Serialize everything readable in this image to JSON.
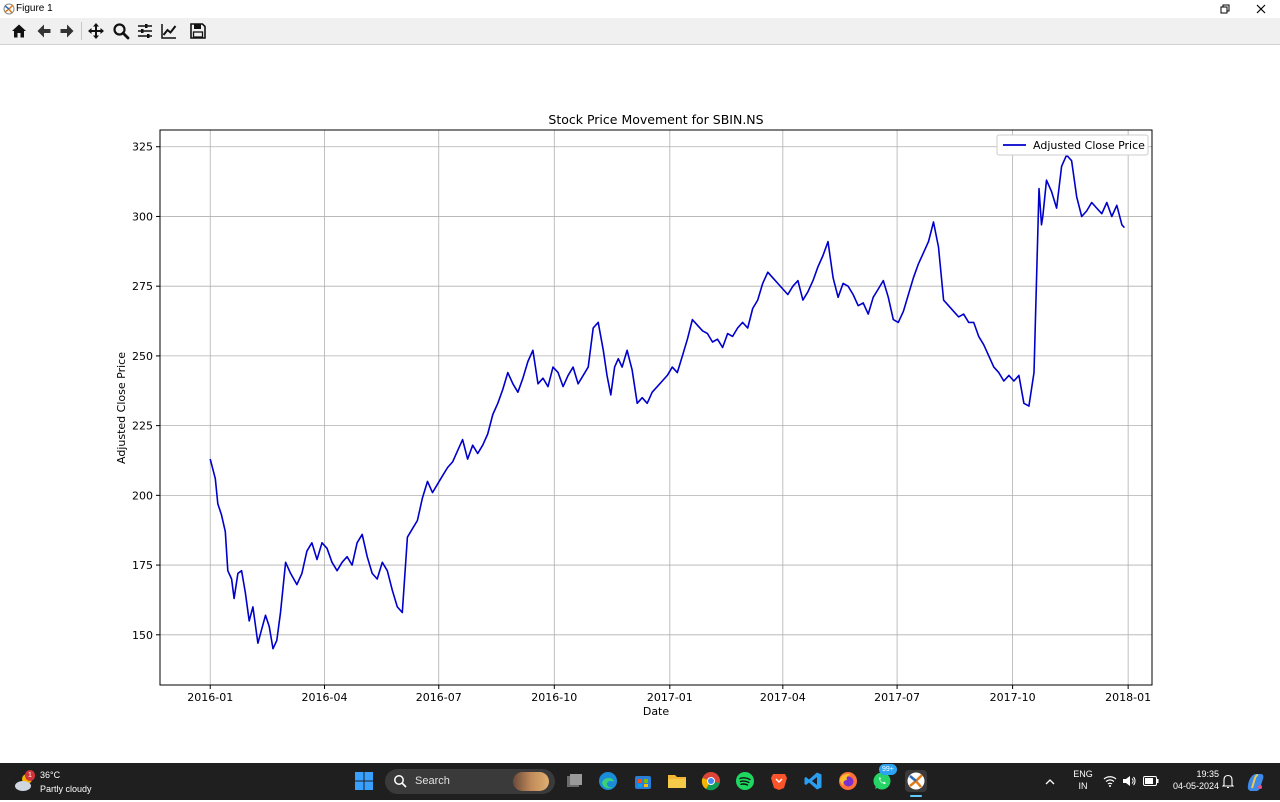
{
  "window": {
    "title": "Figure 1",
    "restore_icon": "restore-icon",
    "close_icon": "close-icon"
  },
  "toolbar": {
    "buttons": [
      {
        "name": "home",
        "icon": "home-icon"
      },
      {
        "name": "back",
        "icon": "arrow-left-icon"
      },
      {
        "name": "forward",
        "icon": "arrow-right-icon"
      },
      {
        "name": "pan",
        "icon": "move-icon"
      },
      {
        "name": "zoom",
        "icon": "magnifier-icon"
      },
      {
        "name": "configure-subplots",
        "icon": "sliders-icon"
      },
      {
        "name": "edit-axis",
        "icon": "line-chart-icon"
      },
      {
        "name": "save",
        "icon": "floppy-disk-icon"
      }
    ]
  },
  "chart_data": {
    "type": "line",
    "title": "Stock Price Movement for SBIN.NS",
    "xlabel": "Date",
    "ylabel": "Adjusted Close Price",
    "xlim": [
      "2015-11-22",
      "2018-01-20"
    ],
    "ylim": [
      132,
      331
    ],
    "xticks": [
      "2016-01",
      "2016-04",
      "2016-07",
      "2016-10",
      "2017-01",
      "2017-04",
      "2017-07",
      "2017-10",
      "2018-01"
    ],
    "yticks": [
      150,
      175,
      200,
      225,
      250,
      275,
      300,
      325
    ],
    "grid": true,
    "legend_position": "upper right",
    "series": [
      {
        "name": "Adjusted Close Price",
        "color": "#0000cc",
        "x": [
          "2016-01-01",
          "2016-01-05",
          "2016-01-07",
          "2016-01-10",
          "2016-01-13",
          "2016-01-15",
          "2016-01-18",
          "2016-01-20",
          "2016-01-23",
          "2016-01-26",
          "2016-01-29",
          "2016-02-01",
          "2016-02-04",
          "2016-02-08",
          "2016-02-11",
          "2016-02-14",
          "2016-02-17",
          "2016-02-20",
          "2016-02-23",
          "2016-02-26",
          "2016-03-01",
          "2016-03-05",
          "2016-03-10",
          "2016-03-14",
          "2016-03-18",
          "2016-03-22",
          "2016-03-26",
          "2016-03-30",
          "2016-04-03",
          "2016-04-07",
          "2016-04-11",
          "2016-04-15",
          "2016-04-19",
          "2016-04-23",
          "2016-04-27",
          "2016-05-01",
          "2016-05-05",
          "2016-05-09",
          "2016-05-13",
          "2016-05-17",
          "2016-05-21",
          "2016-05-25",
          "2016-05-29",
          "2016-06-02",
          "2016-06-06",
          "2016-06-10",
          "2016-06-14",
          "2016-06-18",
          "2016-06-22",
          "2016-06-26",
          "2016-06-30",
          "2016-07-04",
          "2016-07-08",
          "2016-07-12",
          "2016-07-16",
          "2016-07-20",
          "2016-07-24",
          "2016-07-28",
          "2016-08-01",
          "2016-08-05",
          "2016-08-09",
          "2016-08-13",
          "2016-08-17",
          "2016-08-21",
          "2016-08-25",
          "2016-08-29",
          "2016-09-02",
          "2016-09-06",
          "2016-09-10",
          "2016-09-14",
          "2016-09-18",
          "2016-09-22",
          "2016-09-26",
          "2016-09-30",
          "2016-10-04",
          "2016-10-08",
          "2016-10-12",
          "2016-10-16",
          "2016-10-20",
          "2016-10-24",
          "2016-10-28",
          "2016-11-01",
          "2016-11-05",
          "2016-11-09",
          "2016-11-12",
          "2016-11-15",
          "2016-11-18",
          "2016-11-21",
          "2016-11-24",
          "2016-11-28",
          "2016-12-02",
          "2016-12-06",
          "2016-12-10",
          "2016-12-14",
          "2016-12-18",
          "2016-12-22",
          "2016-12-26",
          "2016-12-30",
          "2017-01-03",
          "2017-01-07",
          "2017-01-11",
          "2017-01-15",
          "2017-01-19",
          "2017-01-23",
          "2017-01-27",
          "2017-01-31",
          "2017-02-04",
          "2017-02-08",
          "2017-02-12",
          "2017-02-16",
          "2017-02-20",
          "2017-02-24",
          "2017-02-28",
          "2017-03-04",
          "2017-03-08",
          "2017-03-12",
          "2017-03-16",
          "2017-03-20",
          "2017-03-24",
          "2017-03-28",
          "2017-04-01",
          "2017-04-05",
          "2017-04-09",
          "2017-04-13",
          "2017-04-17",
          "2017-04-21",
          "2017-04-25",
          "2017-04-29",
          "2017-05-03",
          "2017-05-07",
          "2017-05-11",
          "2017-05-15",
          "2017-05-19",
          "2017-05-23",
          "2017-05-27",
          "2017-05-31",
          "2017-06-04",
          "2017-06-08",
          "2017-06-12",
          "2017-06-16",
          "2017-06-20",
          "2017-06-24",
          "2017-06-28",
          "2017-07-02",
          "2017-07-06",
          "2017-07-10",
          "2017-07-14",
          "2017-07-18",
          "2017-07-22",
          "2017-07-26",
          "2017-07-30",
          "2017-08-03",
          "2017-08-07",
          "2017-08-11",
          "2017-08-15",
          "2017-08-19",
          "2017-08-23",
          "2017-08-27",
          "2017-08-31",
          "2017-09-04",
          "2017-09-08",
          "2017-09-12",
          "2017-09-16",
          "2017-09-20",
          "2017-09-24",
          "2017-09-28",
          "2017-10-02",
          "2017-10-06",
          "2017-10-10",
          "2017-10-14",
          "2017-10-18",
          "2017-10-22",
          "2017-10-24",
          "2017-10-25",
          "2017-10-28",
          "2017-11-01",
          "2017-11-05",
          "2017-11-09",
          "2017-11-13",
          "2017-11-17",
          "2017-11-21",
          "2017-11-25",
          "2017-11-29",
          "2017-12-03",
          "2017-12-07",
          "2017-12-11",
          "2017-12-15",
          "2017-12-19",
          "2017-12-23",
          "2017-12-27",
          "2017-12-29"
        ],
        "y": [
          213,
          206,
          197,
          193,
          187,
          173,
          170,
          163,
          172,
          173,
          165,
          155,
          160,
          147,
          152,
          157,
          153,
          145,
          148,
          158,
          176,
          172,
          168,
          172,
          180,
          183,
          177,
          183,
          181,
          176,
          173,
          176,
          178,
          175,
          183,
          186,
          178,
          172,
          170,
          176,
          173,
          166,
          160,
          158,
          185,
          188,
          191,
          199,
          205,
          201,
          204,
          207,
          210,
          212,
          216,
          220,
          213,
          218,
          215,
          218,
          222,
          229,
          233,
          238,
          244,
          240,
          237,
          242,
          248,
          252,
          240,
          242,
          239,
          246,
          244,
          239,
          243,
          246,
          240,
          243,
          246,
          260,
          262,
          252,
          243,
          236,
          246,
          249,
          246,
          252,
          245,
          233,
          235,
          233,
          237,
          239,
          241,
          243,
          246,
          244,
          250,
          256,
          263,
          261,
          259,
          258,
          255,
          256,
          253,
          258,
          257,
          260,
          262,
          260,
          267,
          270,
          276,
          280,
          278,
          276,
          274,
          272,
          275,
          277,
          270,
          273,
          277,
          282,
          286,
          291,
          278,
          271,
          276,
          275,
          272,
          268,
          269,
          265,
          271,
          274,
          277,
          271,
          263,
          262,
          266,
          272,
          278,
          283,
          287,
          291,
          298,
          289,
          270,
          268,
          266,
          264,
          265,
          262,
          262,
          257,
          254,
          250,
          246,
          244,
          241,
          243,
          241,
          243,
          233,
          232,
          244,
          310,
          297,
          300,
          313,
          309,
          303,
          318,
          322,
          320,
          307,
          300,
          302,
          305,
          303,
          301,
          305,
          300,
          304,
          297,
          296
        ]
      }
    ]
  },
  "taskbar": {
    "weather": {
      "temp": "36°C",
      "condition": "Partly cloudy",
      "alert_count": "1",
      "icon": "partly-cloudy-icon"
    },
    "search_placeholder": "Search",
    "apps": [
      {
        "name": "start",
        "icon": "windows-logo-icon"
      },
      {
        "name": "task-view",
        "icon": "task-view-icon"
      },
      {
        "name": "edge",
        "icon": "edge-icon"
      },
      {
        "name": "store",
        "icon": "store-icon"
      },
      {
        "name": "file-explorer",
        "icon": "folder-icon"
      },
      {
        "name": "chrome",
        "icon": "chrome-icon"
      },
      {
        "name": "spotify",
        "icon": "spotify-icon"
      },
      {
        "name": "brave",
        "icon": "brave-icon"
      },
      {
        "name": "vscode",
        "icon": "vscode-icon"
      },
      {
        "name": "firefox",
        "icon": "firefox-icon"
      },
      {
        "name": "whatsapp",
        "icon": "whatsapp-icon",
        "badge": "99+"
      },
      {
        "name": "matplotlib-figure",
        "icon": "matplotlib-icon"
      }
    ],
    "tray": {
      "language": "ENG",
      "region": "IN",
      "time": "19:35",
      "date": "04-05-2024"
    }
  }
}
